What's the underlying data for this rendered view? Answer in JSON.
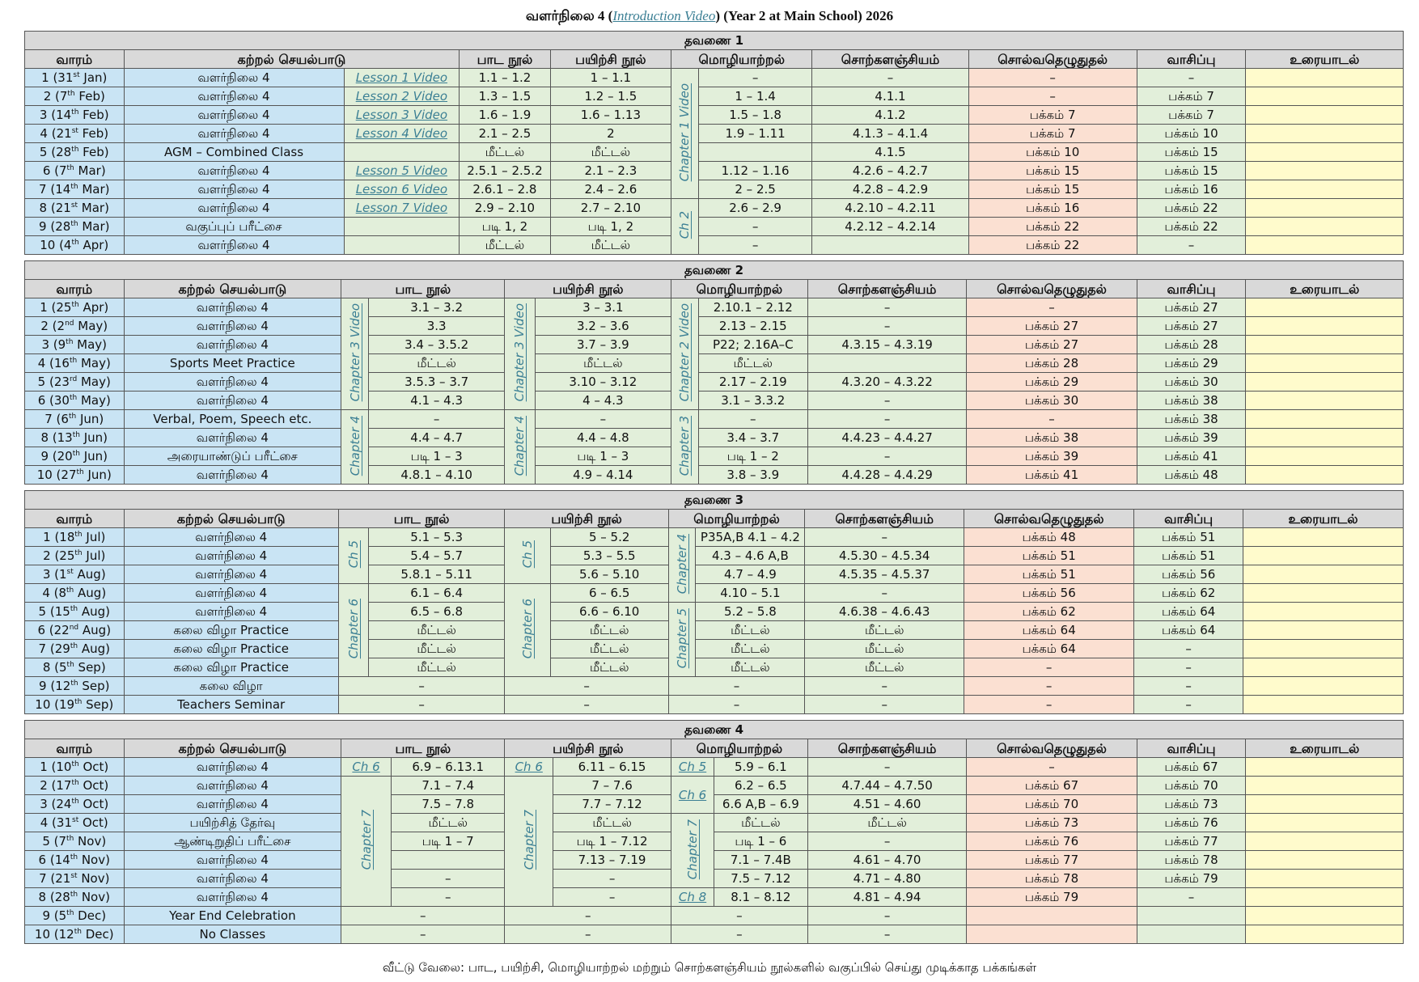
{
  "title": {
    "prefix": "வளர்நிலை 4 (",
    "link": "Introduction Video",
    "suffix": ") (Year 2 at Main School) 2026"
  },
  "columns": [
    "வாரம்",
    "கற்றல் செயல்பாடு",
    "பாட நூல்",
    "பயிற்சி நூல்",
    "மொழியாற்றல்",
    "சொற்களஞ்சியம்",
    "சொல்வதெழுதுதல்",
    "வாசிப்பு",
    "உரையாடல்"
  ],
  "terms": [
    {
      "heading": "தவணை 1",
      "videos": [
        "Lesson 1 Video",
        "Lesson 2 Video",
        "Lesson 3 Video",
        "Lesson 4 Video",
        null,
        "Lesson 5 Video",
        "Lesson 6 Video",
        "Lesson 7 Video",
        null,
        null
      ],
      "sides": {
        "grammar": [
          "Chapter 1 Video",
          "Ch 2"
        ]
      },
      "rows": [
        [
          "1 (31st Jan)",
          "வளர்நிலை 4",
          "1.1 – 1.2",
          "1 – 1.1",
          "–",
          "–",
          "–",
          "–"
        ],
        [
          "2 (7th Feb)",
          "வளர்நிலை 4",
          "1.3 – 1.5",
          "1.2 – 1.5",
          "1 – 1.4",
          "4.1.1",
          "–",
          "பக்கம் 7"
        ],
        [
          "3 (14th Feb)",
          "வளர்நிலை 4",
          "1.6 – 1.9",
          "1.6 – 1.13",
          "1.5 – 1.8",
          "4.1.2",
          "பக்கம் 7",
          "பக்கம் 7"
        ],
        [
          "4 (21st Feb)",
          "வளர்நிலை 4",
          "2.1 – 2.5",
          "2",
          "1.9 – 1.11",
          "4.1.3 – 4.1.4",
          "பக்கம் 7",
          "பக்கம் 10"
        ],
        [
          "5 (28th Feb)",
          "AGM – Combined Class",
          "மீட்டல்",
          "மீட்டல்",
          null,
          "4.1.5",
          "பக்கம் 10",
          "பக்கம் 15"
        ],
        [
          "6 (7th Mar)",
          "வளர்நிலை 4",
          "2.5.1 – 2.5.2",
          "2.1 – 2.3",
          "1.12 – 1.16",
          "4.2.6 – 4.2.7",
          "பக்கம் 15",
          "பக்கம் 15"
        ],
        [
          "7 (14th Mar)",
          "வளர்நிலை 4",
          "2.6.1 – 2.8",
          "2.4 – 2.6",
          "2 – 2.5",
          "4.2.8 – 4.2.9",
          "பக்கம் 15",
          "பக்கம் 16"
        ],
        [
          "8 (21st Mar)",
          "வளர்நிலை 4",
          "2.9 – 2.10",
          "2.7 – 2.10",
          "2.6 – 2.9",
          "4.2.10 – 4.2.11",
          "பக்கம் 16",
          "பக்கம் 22"
        ],
        [
          "9 (28th Mar)",
          "வகுப்புப் பரீட்சை",
          "படி 1, 2",
          "படி 1, 2",
          "–",
          "4.2.12 – 4.2.14",
          "பக்கம் 22",
          "பக்கம் 22"
        ],
        [
          "10 (4th Apr)",
          "வளர்நிலை 4",
          "மீட்டல்",
          "மீட்டல்",
          "–",
          null,
          "பக்கம் 22",
          "–"
        ]
      ]
    },
    {
      "heading": "தவணை 2",
      "sides": {
        "textbook": [
          "Chapter 3 Video",
          "Chapter 4"
        ],
        "workbook": [
          "Chapter 3 Video",
          "Chapter 4"
        ],
        "grammar": [
          "Chapter 2 Video",
          "Chapter 3"
        ]
      },
      "rows": [
        [
          "1 (25th Apr)",
          "வளர்நிலை 4",
          "3.1 – 3.2",
          "3 – 3.1",
          "2.10.1 – 2.12",
          "–",
          "–",
          "பக்கம் 27"
        ],
        [
          "2 (2nd May)",
          "வளர்நிலை 4",
          "3.3",
          "3.2 – 3.6",
          "2.13 – 2.15",
          "–",
          "பக்கம் 27",
          "பக்கம் 27"
        ],
        [
          "3 (9th May)",
          "வளர்நிலை 4",
          "3.4 – 3.5.2",
          "3.7 – 3.9",
          "P22; 2.16A–C",
          "4.3.15 – 4.3.19",
          "பக்கம் 27",
          "பக்கம் 28"
        ],
        [
          "4 (16th May)",
          "Sports Meet Practice",
          "மீட்டல்",
          "மீட்டல்",
          "மீட்டல்",
          null,
          "பக்கம் 28",
          "பக்கம் 29"
        ],
        [
          "5 (23rd May)",
          "வளர்நிலை 4",
          "3.5.3 – 3.7",
          "3.10 – 3.12",
          "2.17 – 2.19",
          "4.3.20 – 4.3.22",
          "பக்கம் 29",
          "பக்கம் 30"
        ],
        [
          "6 (30th May)",
          "வளர்நிலை 4",
          "4.1 – 4.3",
          "4 – 4.3",
          "3.1 – 3.3.2",
          "–",
          "பக்கம் 30",
          "பக்கம் 38"
        ],
        [
          "7 (6th Jun)",
          "Verbal, Poem, Speech etc.",
          "–",
          "–",
          "–",
          "–",
          "–",
          "பக்கம் 38"
        ],
        [
          "8 (13th Jun)",
          "வளர்நிலை 4",
          "4.4 – 4.7",
          "4.4 – 4.8",
          "3.4 – 3.7",
          "4.4.23 – 4.4.27",
          "பக்கம் 38",
          "பக்கம் 39"
        ],
        [
          "9 (20th Jun)",
          "அரையாண்டுப் பரீட்சை",
          "படி 1 – 3",
          "படி 1 – 3",
          "படி 1 – 2",
          "–",
          "பக்கம் 39",
          "பக்கம் 41"
        ],
        [
          "10 (27th Jun)",
          "வளர்நிலை 4",
          "4.8.1 – 4.10",
          "4.9 – 4.14",
          "3.8 – 3.9",
          "4.4.28 – 4.4.29",
          "பக்கம் 41",
          "பக்கம் 48"
        ]
      ]
    },
    {
      "heading": "தவணை 3",
      "sides": {
        "textbook": [
          "Ch 5",
          "Chapter 6"
        ],
        "workbook": [
          "Ch 5",
          "Chapter 6"
        ],
        "grammar": [
          "Chapter 4",
          "Chapter 5"
        ]
      },
      "rows": [
        [
          "1 (18th Jul)",
          "வளர்நிலை 4",
          "5.1 – 5.3",
          "5 – 5.2",
          "P35A,B 4.1 – 4.2",
          "–",
          "பக்கம் 48",
          "பக்கம் 51"
        ],
        [
          "2 (25th Jul)",
          "வளர்நிலை 4",
          "5.4 – 5.7",
          "5.3 – 5.5",
          "4.3 – 4.6 A,B",
          "4.5.30 – 4.5.34",
          "பக்கம் 51",
          "பக்கம் 51"
        ],
        [
          "3 (1st Aug)",
          "வளர்நிலை 4",
          "5.8.1 – 5.11",
          "5.6 – 5.10",
          "4.7 – 4.9",
          "4.5.35 – 4.5.37",
          "பக்கம் 51",
          "பக்கம் 56"
        ],
        [
          "4 (8th Aug)",
          "வளர்நிலை 4",
          "6.1 – 6.4",
          "6 – 6.5",
          "4.10 – 5.1",
          "–",
          "பக்கம் 56",
          "பக்கம் 62"
        ],
        [
          "5 (15th Aug)",
          "வளர்நிலை 4",
          "6.5 – 6.8",
          "6.6 – 6.10",
          "5.2 – 5.8",
          "4.6.38 – 4.6.43",
          "பக்கம் 62",
          "பக்கம் 64"
        ],
        [
          "6 (22nd Aug)",
          "கலை விழா Practice",
          "மீட்டல்",
          "மீட்டல்",
          "மீட்டல்",
          "மீட்டல்",
          "பக்கம் 64",
          "பக்கம் 64"
        ],
        [
          "7 (29th Aug)",
          "கலை விழா Practice",
          "மீட்டல்",
          "மீட்டல்",
          "மீட்டல்",
          "மீட்டல்",
          "பக்கம் 64",
          "–"
        ],
        [
          "8 (5th Sep)",
          "கலை விழா Practice",
          "மீட்டல்",
          "மீட்டல்",
          "மீட்டல்",
          "மீட்டல்",
          "–",
          "–"
        ],
        [
          "9 (12th Sep)",
          "கலை விழா",
          "–",
          "–",
          "–",
          "–",
          "–",
          "–"
        ],
        [
          "10 (19th Sep)",
          "Teachers Seminar",
          "–",
          "–",
          "–",
          "–",
          "–",
          "–"
        ]
      ]
    },
    {
      "heading": "தவணை 4",
      "sides": {
        "textbook": [
          "Ch 6",
          "Chapter 7"
        ],
        "workbook": [
          "Ch 6",
          "Chapter 7"
        ],
        "grammar": [
          "Ch 5",
          "Ch 6",
          "Chapter 7",
          "Ch 8"
        ]
      },
      "rows": [
        [
          "1 (10th Oct)",
          "வளர்நிலை 4",
          "6.9 – 6.13.1",
          "6.11 – 6.15",
          "5.9 – 6.1",
          "–",
          "–",
          "பக்கம் 67"
        ],
        [
          "2 (17th Oct)",
          "வளர்நிலை 4",
          "7.1 – 7.4",
          "7 – 7.6",
          "6.2 – 6.5",
          "4.7.44 – 4.7.50",
          "பக்கம் 67",
          "பக்கம் 70"
        ],
        [
          "3 (24th Oct)",
          "வளர்நிலை 4",
          "7.5 – 7.8",
          "7.7 – 7.12",
          "6.6 A,B – 6.9",
          "4.51 – 4.60",
          "பக்கம் 70",
          "பக்கம் 73"
        ],
        [
          "4 (31st Oct)",
          "பயிற்சித் தேர்வு",
          "மீட்டல்",
          "மீட்டல்",
          "மீட்டல்",
          "மீட்டல்",
          "பக்கம் 73",
          "பக்கம் 76"
        ],
        [
          "5 (7th Nov)",
          "ஆண்டிறுதிப் பரீட்சை",
          "படி 1 – 7",
          "படி 1 – 7.12",
          "படி 1 – 6",
          "–",
          "பக்கம் 76",
          "பக்கம் 77"
        ],
        [
          "6 (14th Nov)",
          "வளர்நிலை 4",
          null,
          "7.13 – 7.19",
          "7.1 – 7.4B",
          "4.61 – 4.70",
          "பக்கம் 77",
          "பக்கம் 78"
        ],
        [
          "7 (21st Nov)",
          "வளர்நிலை 4",
          "–",
          "–",
          "7.5 – 7.12",
          "4.71 – 4.80",
          "பக்கம் 78",
          "பக்கம் 79"
        ],
        [
          "8 (28th Nov)",
          "வளர்நிலை 4",
          "–",
          "–",
          "8.1 – 8.12",
          "4.81 – 4.94",
          "பக்கம் 79",
          "–"
        ],
        [
          "9 (5th Dec)",
          "Year End Celebration",
          "–",
          "–",
          "–",
          "–",
          null,
          null
        ],
        [
          "10 (12th Dec)",
          "No Classes",
          "–",
          "–",
          "–",
          "–",
          null,
          null
        ]
      ]
    }
  ],
  "footer": "வீட்டு வேலை: பாட, பயிற்சி, மொழியாற்றல் மற்றும் சொற்களஞ்சியம் நூல்களில் வகுப்பில் செய்து முடிக்காத பக்கங்கள்"
}
